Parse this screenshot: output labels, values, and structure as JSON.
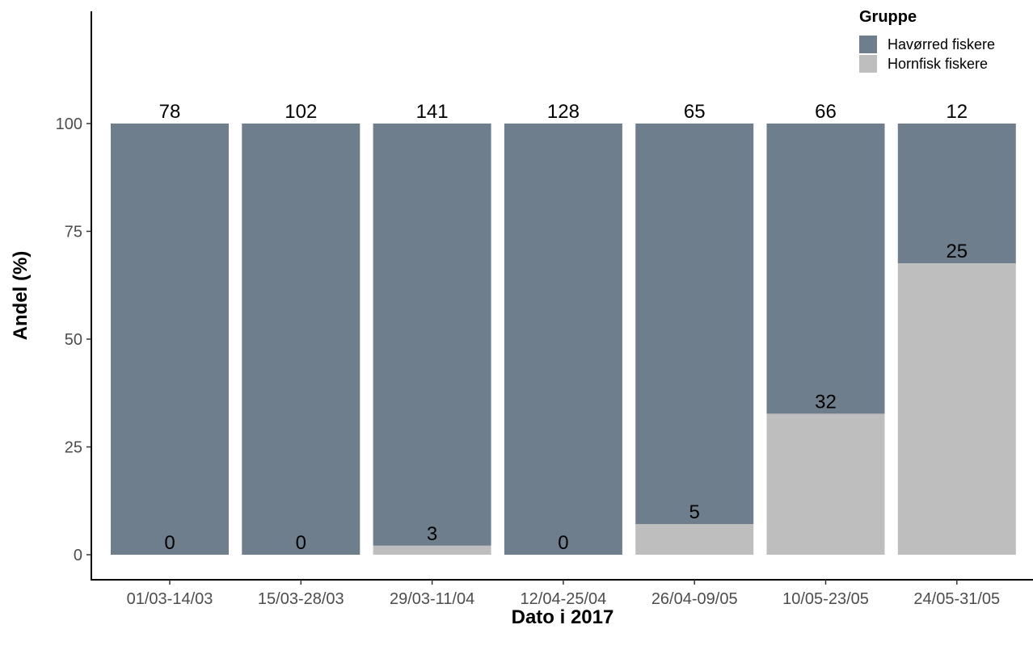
{
  "chart_data": {
    "type": "bar",
    "stacked": true,
    "title": "",
    "xlabel": "Dato i 2017",
    "ylabel": "Andel (%)",
    "ylim": [
      0,
      120
    ],
    "yticks": [
      0,
      25,
      50,
      75,
      100
    ],
    "ytick_labels": [
      "0",
      "25",
      "50",
      "75",
      "100"
    ],
    "grid": false,
    "legend": {
      "title": "Gruppe",
      "position": "top-right"
    },
    "categories": [
      "01/03-14/03",
      "15/03-28/03",
      "29/03-11/04",
      "12/04-25/04",
      "26/04-09/05",
      "10/05-23/05",
      "24/05-31/05"
    ],
    "series": [
      {
        "name": "Havørred fiskere",
        "color": "#6f7e8d",
        "values": [
          100,
          100,
          97.9,
          100,
          92.9,
          67.3,
          32.4
        ],
        "labels": [
          "78",
          "102",
          "141",
          "128",
          "65",
          "66",
          "12"
        ]
      },
      {
        "name": "Hornfisk fiskere",
        "color": "#bebebe",
        "values": [
          0,
          0,
          2.1,
          0,
          7.1,
          32.7,
          67.6
        ],
        "labels": [
          "0",
          "0",
          "3",
          "0",
          "5",
          "32",
          "25"
        ]
      }
    ]
  }
}
